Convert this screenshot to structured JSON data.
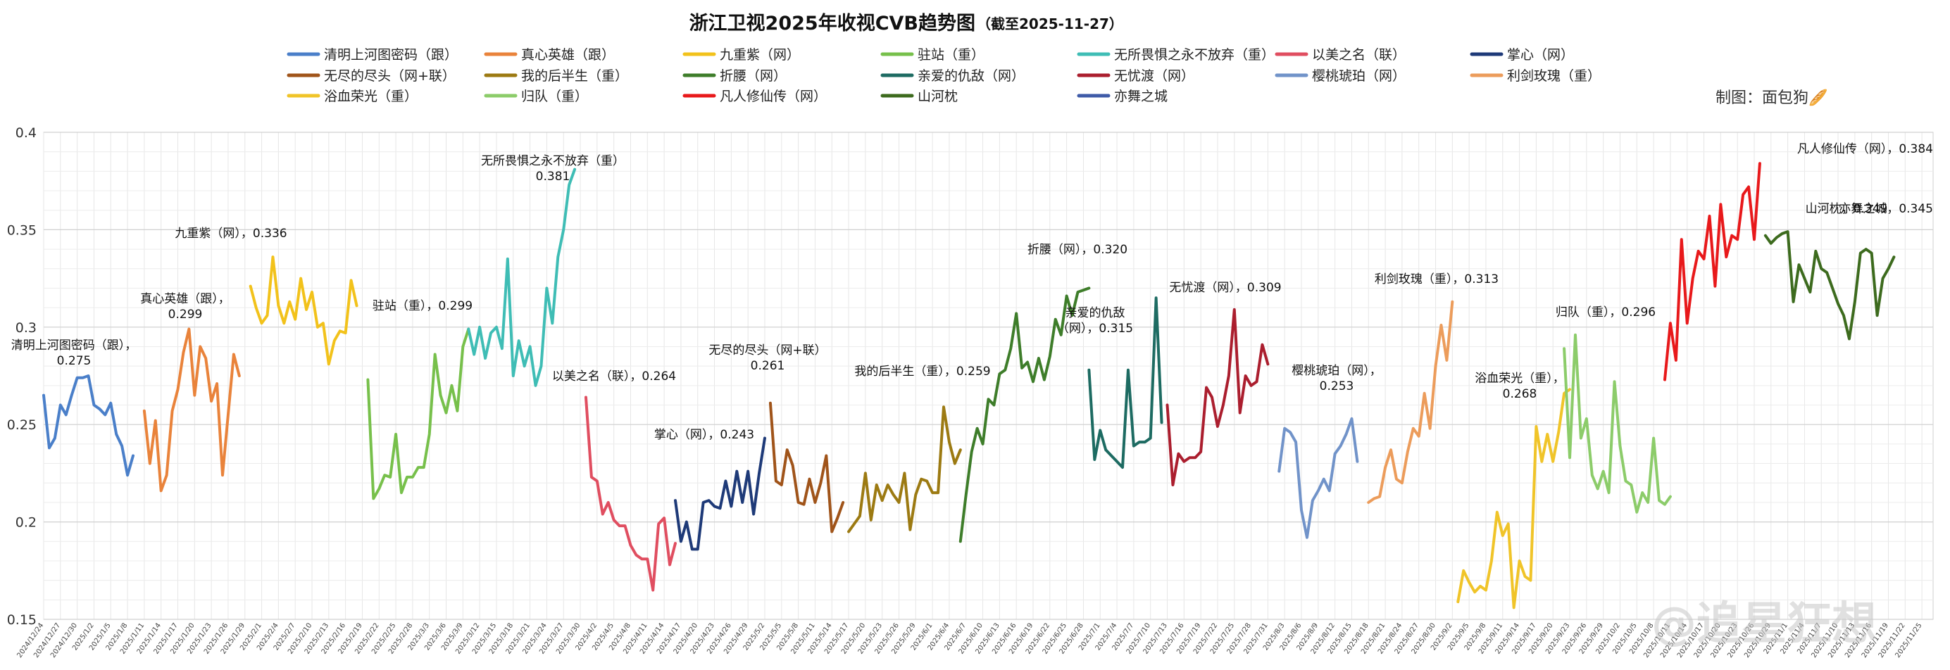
{
  "chart_data": {
    "type": "line",
    "title": "浙江卫视2025年收视CVB趋势图",
    "subtitle": "（截至2025-11-27）",
    "credit": "制图：面包狗🥖",
    "watermark": "@追星狂想",
    "ylim": [
      0.15,
      0.4
    ],
    "yticks": [
      "0.15",
      "0.2",
      "0.25",
      "0.3",
      "0.35",
      "0.4"
    ],
    "grid": true,
    "legend_position": "top",
    "x_tick_labels": [
      "2024/12/24",
      "2024/12/27",
      "2024/12/30",
      "2025/1/2",
      "2025/1/5",
      "2025/1/8",
      "2025/1/11",
      "2025/1/14",
      "2025/1/17",
      "2025/1/20",
      "2025/1/23",
      "2025/1/26",
      "2025/1/29",
      "2025/2/1",
      "2025/2/4",
      "2025/2/7",
      "2025/2/10",
      "2025/2/13",
      "2025/2/16",
      "2025/2/19",
      "2025/2/22",
      "2025/2/25",
      "2025/2/28",
      "2025/3/3",
      "2025/3/6",
      "2025/3/9",
      "2025/3/12",
      "2025/3/15",
      "2025/3/18",
      "2025/3/21",
      "2025/3/24",
      "2025/3/27",
      "2025/3/30",
      "2025/4/2",
      "2025/4/5",
      "2025/4/8",
      "2025/4/11",
      "2025/4/14",
      "2025/4/17",
      "2025/4/20",
      "2025/4/23",
      "2025/4/26",
      "2025/4/29",
      "2025/5/2",
      "2025/5/5",
      "2025/5/8",
      "2025/5/11",
      "2025/5/14",
      "2025/5/17",
      "2025/5/20",
      "2025/5/23",
      "2025/5/26",
      "2025/5/29",
      "2025/6/1",
      "2025/6/4",
      "2025/6/7",
      "2025/6/10",
      "2025/6/13",
      "2025/6/16",
      "2025/6/19",
      "2025/6/22",
      "2025/6/25",
      "2025/6/28",
      "2025/7/1",
      "2025/7/4",
      "2025/7/7",
      "2025/7/10",
      "2025/7/13",
      "2025/7/16",
      "2025/7/19",
      "2025/7/22",
      "2025/7/25",
      "2025/7/28",
      "2025/7/31",
      "2025/8/3",
      "2025/8/6",
      "2025/8/9",
      "2025/8/12",
      "2025/8/15",
      "2025/8/18",
      "2025/8/21",
      "2025/8/24",
      "2025/8/27",
      "2025/8/30",
      "2025/9/2",
      "2025/9/5",
      "2025/9/8",
      "2025/9/11",
      "2025/9/14",
      "2025/9/17",
      "2025/9/20",
      "2025/9/23",
      "2025/9/26",
      "2025/9/29",
      "2025/10/2",
      "2025/10/5",
      "2025/10/8",
      "2025/10/11",
      "2025/10/14",
      "2025/10/17",
      "2025/10/20",
      "2025/10/23",
      "2025/10/26",
      "2025/10/29",
      "2025/11/1",
      "2025/11/4",
      "2025/11/7",
      "2025/11/10",
      "2025/11/13",
      "2025/11/16",
      "2025/11/19",
      "2025/11/22",
      "2025/11/25"
    ],
    "series": [
      {
        "name": "清明上河图密码（跟）",
        "color": "#4a7fc9",
        "start_day": 0,
        "values": [
          0.265,
          0.238,
          0.243,
          0.26,
          0.255,
          0.265,
          0.274,
          0.274,
          0.275,
          0.26,
          0.258,
          0.255,
          0.261,
          0.245,
          0.239,
          0.224,
          0.234
        ],
        "annotation": "清明上河图密码（跟），\n0.275",
        "annot_day": 8
      },
      {
        "name": "真心英雄（跟）",
        "color": "#e9833b",
        "start_day": 18,
        "values": [
          0.257,
          0.23,
          0.252,
          0.216,
          0.224,
          0.257,
          0.268,
          0.287,
          0.299,
          0.265,
          0.29,
          0.284,
          0.262,
          0.271,
          0.224,
          0.255,
          0.286,
          0.275
        ],
        "annotation": "真心英雄（跟），\n0.299",
        "annot_day": 26
      },
      {
        "name": "九重紫（网）",
        "color": "#f2c21b",
        "start_day": 37,
        "values": [
          0.321,
          0.31,
          0.302,
          0.306,
          0.336,
          0.311,
          0.302,
          0.313,
          0.304,
          0.325,
          0.309,
          0.318,
          0.3,
          0.302,
          0.281,
          0.293,
          0.298,
          0.297,
          0.324,
          0.311
        ],
        "annotation": "九重紫（网），0.336",
        "annot_day": 41
      },
      {
        "name": "驻站（重）",
        "color": "#77c04b",
        "start_day": 58,
        "values": [
          0.273,
          0.212,
          0.217,
          0.224,
          0.223,
          0.245,
          0.215,
          0.223,
          0.223,
          0.228,
          0.228,
          0.245,
          0.286,
          0.265,
          0.256,
          0.27,
          0.257,
          0.29,
          0.299
        ],
        "annotation": "驻站（重），0.299",
        "annot_day": 76
      },
      {
        "name": "无所畏惧之永不放弃（重）",
        "color": "#3fbdb5",
        "start_day": 76,
        "values": [
          0.299,
          0.286,
          0.3,
          0.284,
          0.297,
          0.3,
          0.289,
          0.335,
          0.275,
          0.293,
          0.28,
          0.29,
          0.27,
          0.28,
          0.32,
          0.302,
          0.336,
          0.35,
          0.373,
          0.381
        ],
        "annotation": "无所畏惧之永不放弃（重）\n0.381",
        "annot_day": 88
      },
      {
        "name": "以美之名（联）",
        "color": "#e04e60",
        "start_day": 97,
        "values": [
          0.264,
          0.223,
          0.221,
          0.204,
          0.21,
          0.201,
          0.198,
          0.198,
          0.188,
          0.183,
          0.181,
          0.181,
          0.165,
          0.199,
          0.202,
          0.178,
          0.189
        ],
        "annotation": "以美之名（联），0.264",
        "annot_day": 106
      },
      {
        "name": "掌心（网）",
        "color": "#1e3a78",
        "start_day": 113,
        "values": [
          0.211,
          0.19,
          0.2,
          0.186,
          0.186,
          0.21,
          0.211,
          0.208,
          0.207,
          0.221,
          0.208,
          0.226,
          0.21,
          0.226,
          0.204,
          0.225,
          0.243
        ],
        "annotation": "掌心（网），0.243",
        "annot_day": 118
      },
      {
        "name": "无尽的尽头（网+联）",
        "color": "#a0541a",
        "start_day": 130,
        "values": [
          0.261,
          0.221,
          0.219,
          0.237,
          0.229,
          0.21,
          0.209,
          0.222,
          0.21,
          0.22,
          0.234,
          0.195,
          0.202,
          0.21
        ],
        "annotation": "无尽的尽头（网+联）\n0.261",
        "annot_day": 130
      },
      {
        "name": "我的后半生（重）",
        "color": "#9c7a12",
        "start_day": 144,
        "values": [
          0.195,
          0.199,
          0.203,
          0.225,
          0.201,
          0.219,
          0.211,
          0.219,
          0.214,
          0.21,
          0.225,
          0.196,
          0.214,
          0.222,
          0.221,
          0.215,
          0.215,
          0.259,
          0.241,
          0.23,
          0.237
        ],
        "annotation": "我的后半生（重），0.259",
        "annot_day": 153
      },
      {
        "name": "折腰（网）",
        "color": "#3e7d2a",
        "start_day": 164,
        "values": [
          0.19,
          0.214,
          0.236,
          0.248,
          0.24,
          0.263,
          0.26,
          0.276,
          0.278,
          0.289,
          0.307,
          0.279,
          0.282,
          0.272,
          0.284,
          0.273,
          0.285,
          0.304,
          0.296,
          0.316,
          0.306,
          0.318,
          0.319,
          0.32
        ],
        "annotation": "折腰（网），0.320",
        "annot_day": 181
      },
      {
        "name": "亲爱的仇敌（网）",
        "color": "#1d6b62",
        "start_day": 187,
        "values": [
          0.278,
          0.232,
          0.247,
          0.237,
          0.234,
          0.231,
          0.228,
          0.278,
          0.239,
          0.241,
          0.241,
          0.243,
          0.315,
          0.251
        ],
        "annotation": "亲爱的仇敌\n（网），0.315",
        "annot_day": 187
      },
      {
        "name": "无忧渡（网）",
        "color": "#ab1e2e",
        "start_day": 201,
        "values": [
          0.26,
          0.219,
          0.235,
          0.231,
          0.233,
          0.233,
          0.236,
          0.269,
          0.264,
          0.249,
          0.26,
          0.275,
          0.309,
          0.256,
          0.275,
          0.27,
          0.272,
          0.291,
          0.281
        ],
        "annotation": "无忧渡（网），0.309",
        "annot_day": 207
      },
      {
        "name": "樱桃琥珀（网）",
        "color": "#7193c9",
        "start_day": 221,
        "values": [
          0.226,
          0.248,
          0.246,
          0.241,
          0.206,
          0.192,
          0.211,
          0.216,
          0.222,
          0.216,
          0.235,
          0.239,
          0.245,
          0.253,
          0.231
        ],
        "annotation": "樱桃琥珀（网），\n0.253",
        "annot_day": 227
      },
      {
        "name": "利剑玫瑰（重）",
        "color": "#ec9c5b",
        "start_day": 237,
        "values": [
          0.21,
          0.212,
          0.213,
          0.228,
          0.237,
          0.222,
          0.22,
          0.236,
          0.248,
          0.244,
          0.266,
          0.248,
          0.28,
          0.301,
          0.283,
          0.313
        ],
        "annotation": "利剑玫瑰（重），0.313",
        "annot_day": 246
      },
      {
        "name": "浴血荣光（重）",
        "color": "#f0c429",
        "start_day": 253,
        "values": [
          0.159,
          0.175,
          0.169,
          0.164,
          0.167,
          0.165,
          0.18,
          0.205,
          0.193,
          0.199,
          0.156,
          0.18,
          0.172,
          0.17,
          0.249,
          0.231,
          0.245,
          0.231,
          0.246,
          0.266,
          0.268
        ],
        "annotation": "浴血荣光（重），\n0.268",
        "annot_day": 262
      },
      {
        "name": "归队（重）",
        "color": "#8ccc6a",
        "start_day": 272,
        "values": [
          0.289,
          0.233,
          0.296,
          0.243,
          0.253,
          0.224,
          0.217,
          0.226,
          0.215,
          0.272,
          0.239,
          0.221,
          0.219,
          0.205,
          0.215,
          0.21,
          0.243,
          0.211,
          0.209,
          0.213
        ],
        "annotation": "归队（重），0.296",
        "annot_day": 274
      },
      {
        "name": "凡人修仙传（网）",
        "color": "#e8191b",
        "start_day": 290,
        "values": [
          0.273,
          0.302,
          0.283,
          0.345,
          0.302,
          0.325,
          0.339,
          0.335,
          0.357,
          0.321,
          0.363,
          0.336,
          0.347,
          0.345,
          0.368,
          0.372,
          0.345,
          0.384
        ],
        "annotation": "凡人修仙传（网），0.384",
        "annot_day": 310
      },
      {
        "name": "山河枕",
        "color": "#3d6b1e",
        "start_day": 308,
        "values": [
          0.347,
          0.343,
          0.346,
          0.348,
          0.349,
          0.313,
          0.332,
          0.325,
          0.318,
          0.339,
          0.33,
          0.328,
          0.32,
          0.312,
          0.306,
          0.294,
          0.313,
          0.338,
          0.34,
          0.338,
          0.306,
          0.325,
          0.33,
          0.336
        ],
        "annotation": "山河枕，0.349",
        "annot_day": 312
      },
      {
        "name": "亦舞之城",
        "color": "#3f5ba8",
        "start_day": 332,
        "values": [],
        "annotation": "亦舞之城，0.345",
        "annot_day": 332
      }
    ]
  }
}
